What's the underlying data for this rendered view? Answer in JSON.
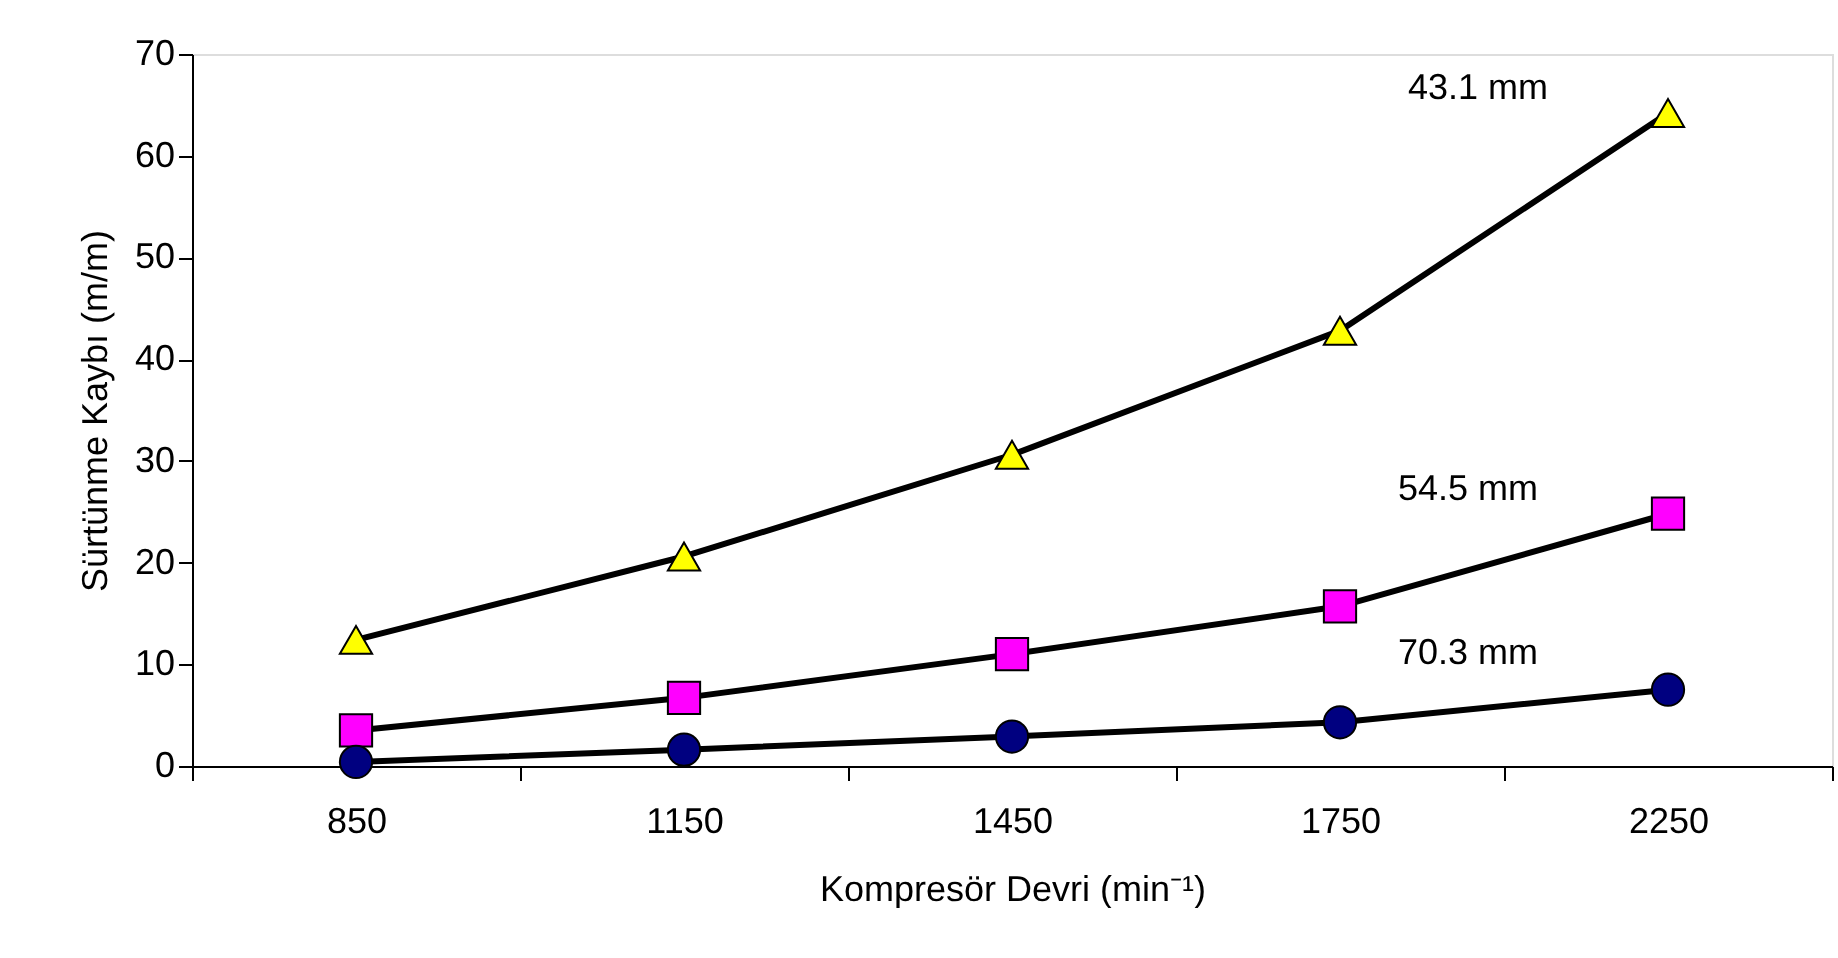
{
  "chart_data": {
    "type": "line",
    "xlabel": "Kompresör Devri (min⁻¹)",
    "ylabel": "Sürtünme Kaybı (m/m)",
    "categories": [
      "850",
      "1150",
      "1450",
      "1750",
      "2250"
    ],
    "ylim": [
      0,
      70
    ],
    "yticks": [
      0,
      10,
      20,
      30,
      40,
      50,
      60,
      70
    ],
    "grid": false,
    "series": [
      {
        "name": "43.1 mm",
        "color": "#ffff00",
        "marker": "triangle",
        "values": [
          12.4,
          20.6,
          30.6,
          42.8,
          64.2
        ]
      },
      {
        "name": "54.5 mm",
        "color": "#ff00ff",
        "marker": "square",
        "values": [
          3.5,
          6.7,
          11.0,
          15.7,
          24.8
        ]
      },
      {
        "name": "70.3 mm",
        "color": "#000080",
        "marker": "circle",
        "values": [
          0.4,
          1.6,
          2.9,
          4.3,
          7.5
        ]
      }
    ]
  }
}
